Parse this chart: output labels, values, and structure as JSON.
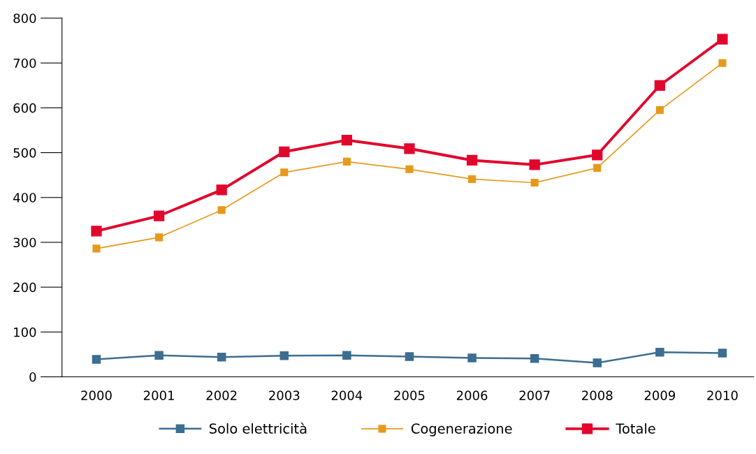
{
  "chart_data": {
    "type": "line",
    "categories": [
      "2000",
      "2001",
      "2002",
      "2003",
      "2004",
      "2005",
      "2006",
      "2007",
      "2008",
      "2009",
      "2010"
    ],
    "series": [
      {
        "name": "Solo elettricità",
        "color": "#3c6e91",
        "values": [
          39,
          48,
          44,
          47,
          48,
          45,
          42,
          41,
          31,
          55,
          53
        ]
      },
      {
        "name": "Cogenerazione",
        "color": "#e59a1c",
        "values": [
          286,
          311,
          372,
          456,
          480,
          463,
          441,
          433,
          466,
          595,
          700
        ]
      },
      {
        "name": "Totale",
        "color": "#e2062d",
        "values": [
          325,
          359,
          417,
          502,
          528,
          509,
          483,
          473,
          495,
          650,
          753
        ]
      }
    ],
    "ylim": [
      0,
      800
    ],
    "yticks": [
      0,
      100,
      200,
      300,
      400,
      500,
      600,
      700,
      800
    ],
    "grid": false,
    "legend": "bottom",
    "marker": "square",
    "line_style": "solid"
  }
}
